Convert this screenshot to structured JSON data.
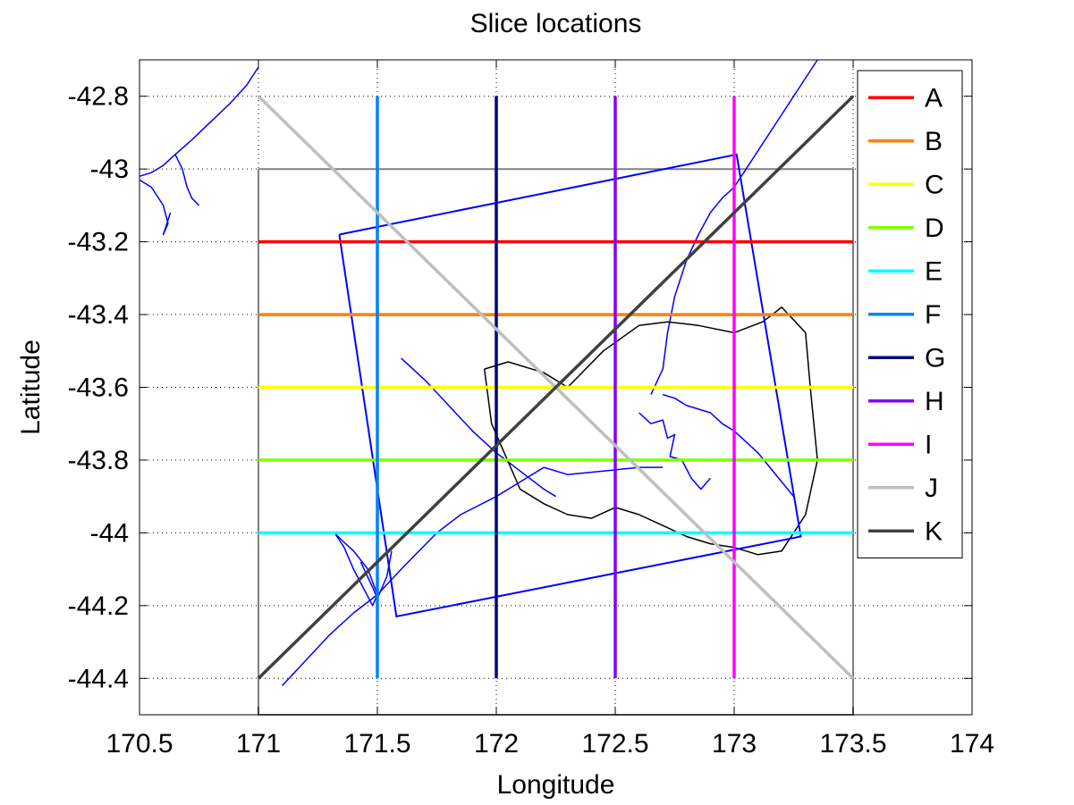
{
  "chart_data": {
    "type": "line",
    "title": "Slice locations",
    "xlabel": "Longitude",
    "ylabel": "Latitude",
    "xlim": [
      170.5,
      174
    ],
    "ylim": [
      -44.5,
      -42.7
    ],
    "xticks": [
      "170.5",
      "171",
      "171.5",
      "172",
      "172.5",
      "173",
      "173.5",
      "174"
    ],
    "xtick_values": [
      170.5,
      171,
      171.5,
      172,
      172.5,
      173,
      173.5,
      174
    ],
    "yticks": [
      "-42.8",
      "-43",
      "-43.2",
      "-43.4",
      "-43.6",
      "-43.8",
      "-44",
      "-44.2",
      "-44.4"
    ],
    "ytick_values": [
      -42.8,
      -43,
      -43.2,
      -43.4,
      -43.6,
      -43.8,
      -44,
      -44.2,
      -44.4
    ],
    "grid": true,
    "legend_position": "top-right",
    "series": [
      {
        "name": "A",
        "color": "#ff0000",
        "x": [
          171,
          173.5
        ],
        "y": [
          -43.2,
          -43.2
        ]
      },
      {
        "name": "B",
        "color": "#ff8000",
        "x": [
          171,
          173.5
        ],
        "y": [
          -43.4,
          -43.4
        ]
      },
      {
        "name": "C",
        "color": "#ffff00",
        "x": [
          171,
          173.5
        ],
        "y": [
          -43.6,
          -43.6
        ]
      },
      {
        "name": "D",
        "color": "#80ff00",
        "x": [
          171,
          173.5
        ],
        "y": [
          -43.8,
          -43.8
        ]
      },
      {
        "name": "E",
        "color": "#00ffff",
        "x": [
          171,
          173.5
        ],
        "y": [
          -44.0,
          -44.0
        ]
      },
      {
        "name": "F",
        "color": "#0080ff",
        "x": [
          171.5,
          171.5
        ],
        "y": [
          -42.8,
          -44.4
        ]
      },
      {
        "name": "G",
        "color": "#000080",
        "x": [
          172,
          172
        ],
        "y": [
          -42.8,
          -44.4
        ]
      },
      {
        "name": "H",
        "color": "#8000ff",
        "x": [
          172.5,
          172.5
        ],
        "y": [
          -42.8,
          -44.4
        ]
      },
      {
        "name": "I",
        "color": "#ff00ff",
        "x": [
          173,
          173
        ],
        "y": [
          -42.8,
          -44.4
        ]
      },
      {
        "name": "J",
        "color": "#bfbfbf",
        "x": [
          171,
          173.5
        ],
        "y": [
          -42.8,
          -44.4
        ]
      },
      {
        "name": "K",
        "color": "#404040",
        "x": [
          171,
          173.5
        ],
        "y": [
          -44.4,
          -42.8
        ]
      }
    ],
    "domain_box": {
      "color": "#808080",
      "x": [
        171,
        173.5,
        173.5,
        171,
        171
      ],
      "y": [
        -43,
        -43,
        -44.5,
        -44.5,
        -43
      ]
    },
    "model_grid": {
      "color": "#0000ff",
      "x": [
        171.34,
        173.01,
        173.28,
        171.58,
        171.34
      ],
      "y": [
        -43.18,
        -42.96,
        -44.01,
        -44.23,
        -43.18
      ]
    },
    "coastline_color": "#0000ff",
    "coastlines": [
      {
        "x": [
          170.5,
          170.55,
          170.6,
          170.65,
          170.72,
          170.8,
          170.88,
          170.95,
          171.0
        ],
        "y": [
          -43.02,
          -43.01,
          -42.99,
          -42.96,
          -42.92,
          -42.87,
          -42.82,
          -42.77,
          -42.72
        ]
      },
      {
        "x": [
          170.5,
          170.55,
          170.6,
          170.62,
          170.6,
          170.63
        ],
        "y": [
          -43.03,
          -43.05,
          -43.1,
          -43.15,
          -43.18,
          -43.12
        ]
      },
      {
        "x": [
          170.65,
          170.68,
          170.7,
          170.72,
          170.75
        ],
        "y": [
          -42.96,
          -43.0,
          -43.05,
          -43.08,
          -43.1
        ]
      },
      {
        "x": [
          171.43,
          171.48,
          171.5,
          171.54,
          171.56
        ],
        "y": [
          -44.08,
          -44.15,
          -44.18,
          -44.12,
          -44.05
        ]
      },
      {
        "x": [
          171.32,
          171.36,
          171.4,
          171.44,
          171.48,
          171.5,
          171.46,
          171.4,
          171.35,
          171.32
        ],
        "y": [
          -44.0,
          -44.04,
          -44.1,
          -44.15,
          -44.2,
          -44.17,
          -44.1,
          -44.05,
          -44.02,
          -44.0
        ]
      },
      {
        "x": [
          171.1,
          171.2,
          171.3,
          171.4,
          171.5,
          171.6,
          171.75,
          171.85,
          172.0,
          172.1,
          172.2,
          172.3,
          172.45,
          172.6,
          172.7
        ],
        "y": [
          -44.42,
          -44.35,
          -44.28,
          -44.22,
          -44.17,
          -44.1,
          -44.0,
          -43.95,
          -43.9,
          -43.86,
          -43.82,
          -43.84,
          -43.83,
          -43.82,
          -43.82
        ]
      },
      {
        "x": [
          172.7,
          172.75,
          172.8,
          172.85,
          172.9,
          172.95,
          173.0,
          173.05,
          173.1,
          173.15,
          173.2,
          173.25
        ],
        "y": [
          -43.62,
          -43.63,
          -43.65,
          -43.66,
          -43.67,
          -43.7,
          -43.72,
          -43.75,
          -43.78,
          -43.82,
          -43.86,
          -43.9
        ]
      },
      {
        "x": [
          172.6,
          172.65,
          172.7,
          172.72,
          172.75,
          172.73,
          172.78,
          172.82,
          172.86,
          172.9
        ],
        "y": [
          -43.67,
          -43.7,
          -43.69,
          -43.74,
          -43.73,
          -43.79,
          -43.8,
          -43.85,
          -43.88,
          -43.85
        ]
      },
      {
        "x": [
          171.6,
          171.7,
          171.8,
          171.9,
          172.0,
          172.1,
          172.2,
          172.25
        ],
        "y": [
          -43.52,
          -43.58,
          -43.65,
          -43.72,
          -43.78,
          -43.83,
          -43.88,
          -43.9
        ]
      },
      {
        "x": [
          172.65,
          172.7,
          172.72,
          172.75,
          172.8,
          172.85,
          172.9,
          172.95,
          173.0,
          173.05,
          173.1,
          173.2,
          173.35
        ],
        "y": [
          -43.62,
          -43.55,
          -43.45,
          -43.35,
          -43.25,
          -43.18,
          -43.12,
          -43.08,
          -43.05,
          -43.0,
          -42.95,
          -42.85,
          -42.7
        ]
      }
    ],
    "land_outline": {
      "color": "#000000",
      "x": [
        171.95,
        172.05,
        172.2,
        172.3,
        172.45,
        172.6,
        172.72,
        172.85,
        173.0,
        173.12,
        173.2,
        173.3,
        173.32,
        173.35,
        173.3,
        173.2,
        173.1,
        173.0,
        172.9,
        172.8,
        172.7,
        172.6,
        172.5,
        172.4,
        172.3,
        172.2,
        172.1,
        171.98,
        171.95
      ],
      "y": [
        -43.55,
        -43.53,
        -43.56,
        -43.6,
        -43.5,
        -43.43,
        -43.42,
        -43.43,
        -43.45,
        -43.42,
        -43.38,
        -43.45,
        -43.6,
        -43.8,
        -43.95,
        -44.05,
        -44.06,
        -44.04,
        -44.03,
        -44.01,
        -43.98,
        -43.95,
        -43.93,
        -43.96,
        -43.95,
        -43.92,
        -43.88,
        -43.7,
        -43.55
      ]
    }
  }
}
